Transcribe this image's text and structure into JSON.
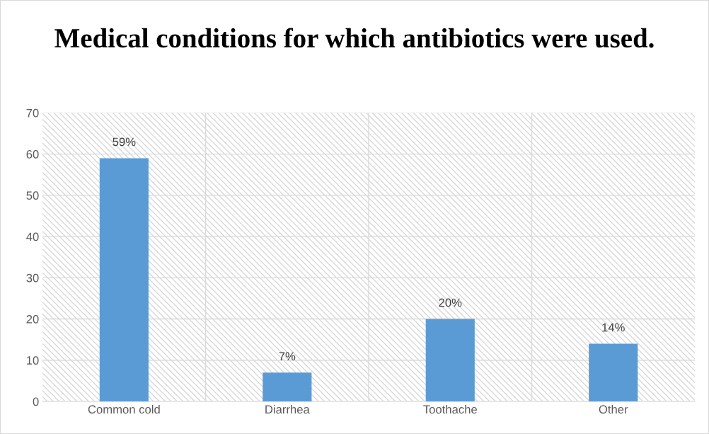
{
  "chart_data": {
    "type": "bar",
    "title": "Medical conditions for which antibiotics were used.",
    "categories": [
      "Common cold",
      "Diarrhea",
      "Toothache",
      "Other"
    ],
    "values": [
      59,
      7,
      20,
      14
    ],
    "value_labels": [
      "59%",
      "7%",
      "20%",
      "14%"
    ],
    "color": "#5b9bd5",
    "ylim": [
      0,
      70
    ],
    "yticks": [
      0,
      10,
      20,
      30,
      40,
      50,
      60,
      70
    ],
    "grid": true
  }
}
